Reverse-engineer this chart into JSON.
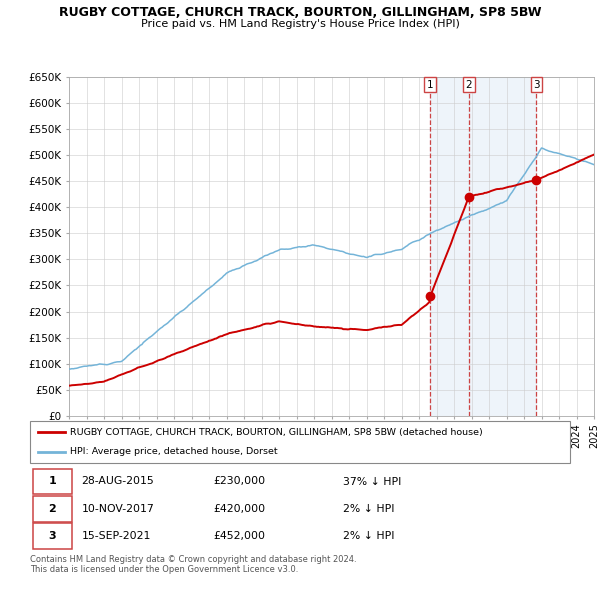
{
  "title": "RUGBY COTTAGE, CHURCH TRACK, BOURTON, GILLINGHAM, SP8 5BW",
  "subtitle": "Price paid vs. HM Land Registry's House Price Index (HPI)",
  "ylim": [
    0,
    650000
  ],
  "yticks": [
    0,
    50000,
    100000,
    150000,
    200000,
    250000,
    300000,
    350000,
    400000,
    450000,
    500000,
    550000,
    600000,
    650000
  ],
  "ytick_labels": [
    "£0",
    "£50K",
    "£100K",
    "£150K",
    "£200K",
    "£250K",
    "£300K",
    "£350K",
    "£400K",
    "£450K",
    "£500K",
    "£550K",
    "£600K",
    "£650K"
  ],
  "hpi_color": "#74b4d8",
  "price_color": "#cc0000",
  "vline_color": "#cc4444",
  "bg_color": "#e8f0f8",
  "sale_dates": [
    2015.65,
    2017.86,
    2021.71
  ],
  "sale_prices": [
    230000,
    420000,
    452000
  ],
  "sale_labels": [
    "1",
    "2",
    "3"
  ],
  "sale_date_strs": [
    "28-AUG-2015",
    "10-NOV-2017",
    "15-SEP-2021"
  ],
  "sale_price_strs": [
    "£230,000",
    "£420,000",
    "£452,000"
  ],
  "sale_hpi_strs": [
    "37% ↓ HPI",
    "2% ↓ HPI",
    "2% ↓ HPI"
  ],
  "legend_property": "RUGBY COTTAGE, CHURCH TRACK, BOURTON, GILLINGHAM, SP8 5BW (detached house)",
  "legend_hpi": "HPI: Average price, detached house, Dorset",
  "footer": "Contains HM Land Registry data © Crown copyright and database right 2024.\nThis data is licensed under the Open Government Licence v3.0.",
  "xmin": 1995,
  "xmax": 2025
}
